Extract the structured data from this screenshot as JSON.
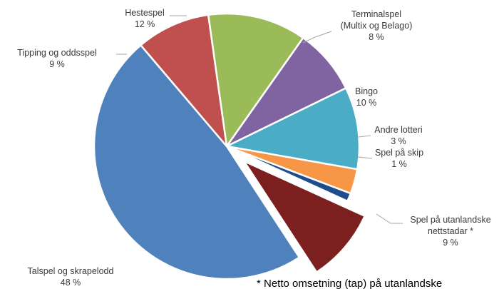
{
  "chart_data": {
    "type": "pie",
    "title": "",
    "series": [
      {
        "values": [
          {
            "label": "Hestespel",
            "value": 12,
            "value_label": "12 %",
            "color": "#9bbb59"
          },
          {
            "label": "Terminalspel (Multix og Belago)",
            "label_lines": [
              "Terminalspel",
              "(Multix og Belago)"
            ],
            "value": 8,
            "value_label": "8 %",
            "color": "#8064a2"
          },
          {
            "label": "Bingo",
            "value": 10,
            "value_label": "10 %",
            "color": "#4bacc6"
          },
          {
            "label": "Andre lotteri",
            "value": 3,
            "value_label": "3 %",
            "color": "#f79646"
          },
          {
            "label": "Spel på skip",
            "value": 1,
            "value_label": "1 %",
            "color": "#1f4e8c"
          },
          {
            "label": "Spel på utanlandske nettstadar *",
            "label_lines": [
              "Spel på utanlandske",
              "nettstadar *"
            ],
            "value": 9,
            "value_label": "9 %",
            "color": "#7b1f1f",
            "exploded": true
          },
          {
            "label": "Talspel og skrapelodd",
            "value": 48,
            "value_label": "48 %",
            "color": "#4f81bd"
          },
          {
            "label": "Tipping og oddsspel",
            "value": 9,
            "value_label": "9 %",
            "color": "#c0504d"
          }
        ]
      }
    ],
    "start_angle_deg": -8,
    "direction": "clockwise",
    "legend": "none",
    "footnote": "* Netto omsetning (tap) på utanlandske"
  }
}
